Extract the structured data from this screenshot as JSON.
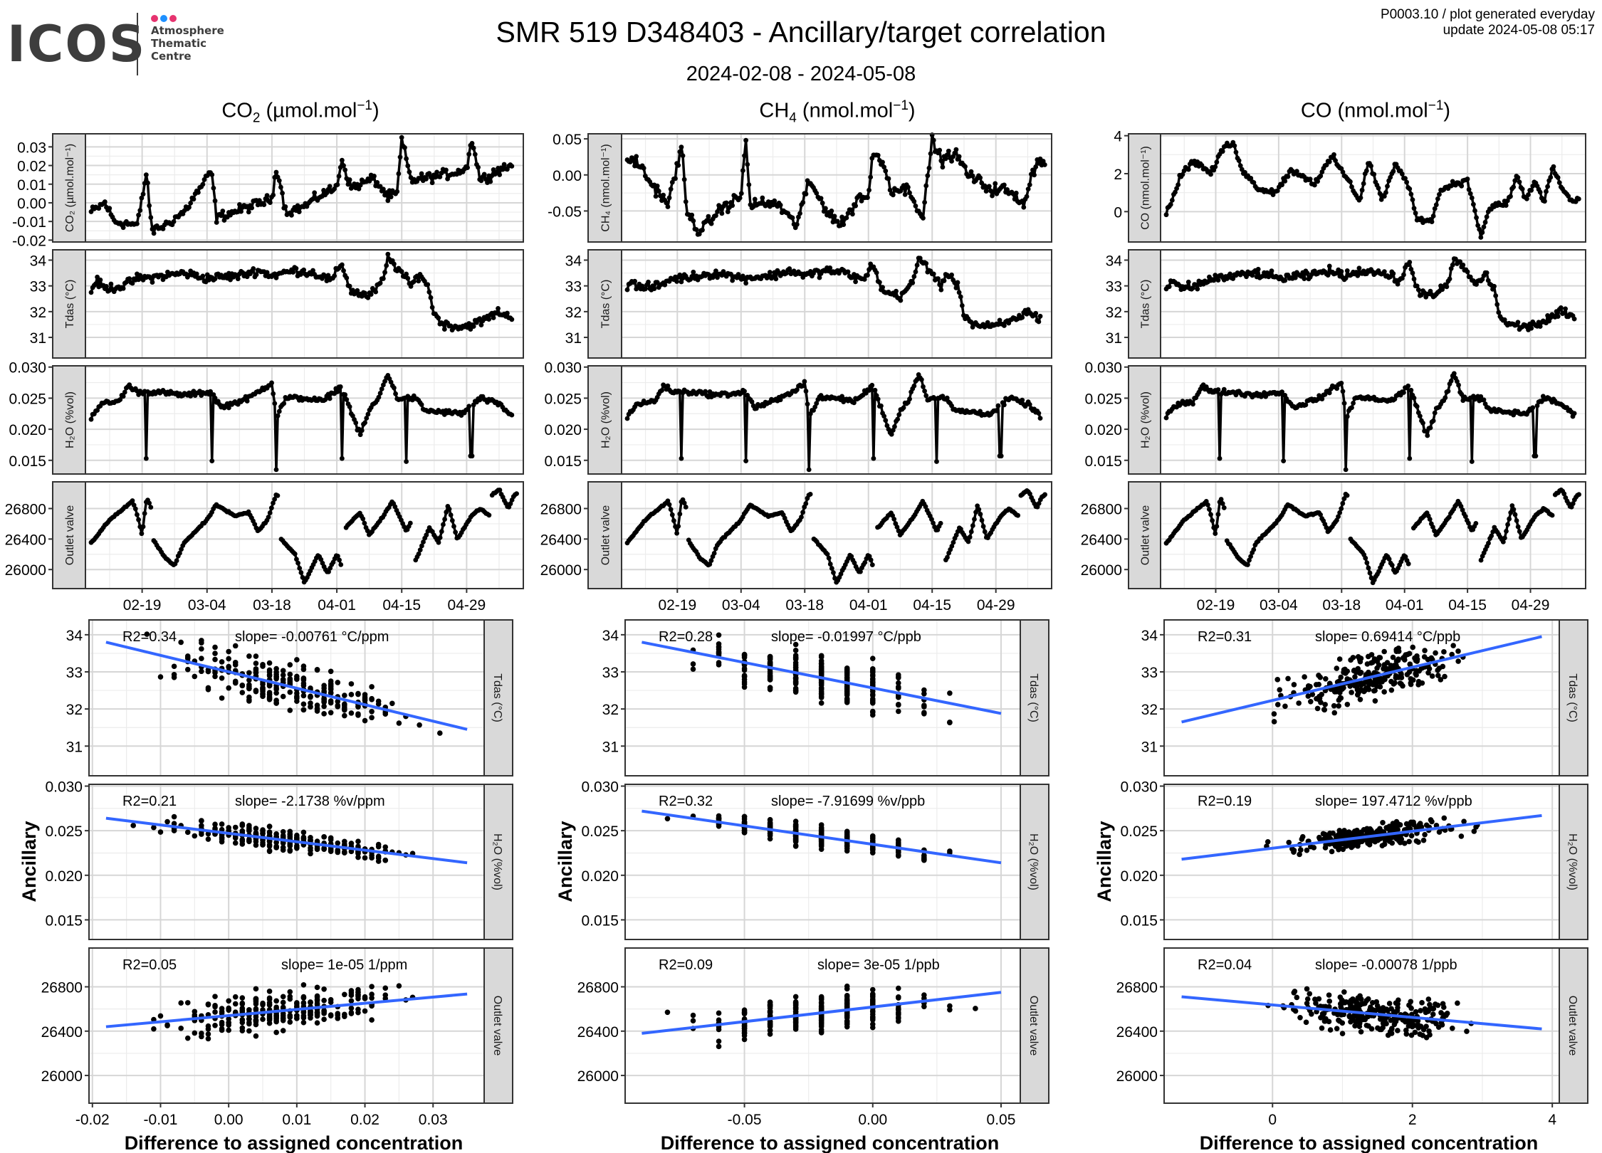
{
  "header": {
    "logo_text": "ICOS",
    "logo_subtitle": [
      "Atmosphere",
      "Thematic",
      "Centre"
    ],
    "logo_dot_colors": [
      "#e6336f",
      "#1e90ff",
      "#e6336f"
    ],
    "title": "SMR 519 D348403 - Ancillary/target correlation",
    "subtitle": "2024-02-08 - 2024-05-08",
    "meta_line1": "P0003.10 / plot generated everyday",
    "meta_line2": "update  2024-05-08 05:17"
  },
  "columns": [
    {
      "name": "CO2",
      "title_main": "CO",
      "title_sub": "2",
      "title_rest": " (µmol.mol",
      "title_sup": "−1",
      "title_end": ")",
      "unit": "ppm"
    },
    {
      "name": "CH4",
      "title_main": "CH",
      "title_sub": "4",
      "title_rest": " (nmol.mol",
      "title_sup": "−1",
      "title_end": ")",
      "unit": "ppb"
    },
    {
      "name": "CO",
      "title_main": "CO",
      "title_sub": "",
      "title_rest": " (nmol.mol",
      "title_sup": "−1",
      "title_end": ")",
      "unit": "ppb"
    }
  ],
  "colors": {
    "line": "#000000",
    "fit": "#3366ff",
    "strip_bg": "#d9d9d9",
    "grid_major": "#d6d6d6",
    "grid_minor": "#ececec",
    "frame": "#333333"
  },
  "chart_data": [
    {
      "type": "line",
      "title": "Time series (2024-02-08 - 2024-05-08)",
      "x_ticks": [
        "02-19",
        "03-04",
        "03-18",
        "04-01",
        "04-15",
        "04-29"
      ],
      "x_range_days": [
        0,
        92
      ],
      "x_tick_days": [
        11,
        25,
        39,
        53,
        67,
        81
      ],
      "panels": [
        {
          "column": "CO2",
          "strip": "CO2 (µmol.mol-1)",
          "ylim": [
            -0.021,
            0.037
          ],
          "yticks": [
            "0.03",
            "0.02",
            "0.01",
            "0.00",
            "-0.01",
            "-0.02"
          ],
          "ytick_values": [
            0.03,
            0.02,
            0.01,
            0.0,
            -0.01,
            -0.02
          ],
          "anchors": [
            [
              0,
              -0.005
            ],
            [
              3,
              0.0
            ],
            [
              5,
              -0.01
            ],
            [
              10,
              -0.012
            ],
            [
              12,
              0.017
            ],
            [
              13,
              -0.015
            ],
            [
              16,
              -0.012
            ],
            [
              20,
              -0.005
            ],
            [
              26,
              0.017
            ],
            [
              27,
              -0.008
            ],
            [
              33,
              -0.003
            ],
            [
              39,
              0.002
            ],
            [
              40,
              0.02
            ],
            [
              42,
              -0.005
            ],
            [
              46,
              -0.002
            ],
            [
              50,
              0.005
            ],
            [
              53,
              0.008
            ],
            [
              54,
              0.024
            ],
            [
              56,
              0.008
            ],
            [
              61,
              0.013
            ],
            [
              64,
              0.003
            ],
            [
              66,
              0.005
            ],
            [
              67,
              0.034
            ],
            [
              69,
              0.012
            ],
            [
              76,
              0.015
            ],
            [
              81,
              0.018
            ],
            [
              82,
              0.035
            ],
            [
              84,
              0.012
            ],
            [
              88,
              0.018
            ],
            [
              91,
              0.02
            ]
          ]
        },
        {
          "column": "all",
          "strip": "Tdas (°C)",
          "ylim": [
            30.2,
            34.4
          ],
          "yticks": [
            "34",
            "33",
            "32",
            "31"
          ],
          "ytick_values": [
            34,
            33,
            32,
            31
          ],
          "anchors": [
            [
              0,
              32.8
            ],
            [
              1,
              33.2
            ],
            [
              3,
              32.9
            ],
            [
              7,
              33.0
            ],
            [
              10,
              33.3
            ],
            [
              12,
              33.3
            ],
            [
              20,
              33.5
            ],
            [
              25,
              33.3
            ],
            [
              32,
              33.4
            ],
            [
              36,
              33.6
            ],
            [
              39,
              33.4
            ],
            [
              44,
              33.6
            ],
            [
              48,
              33.5
            ],
            [
              52,
              33.2
            ],
            [
              54,
              33.9
            ],
            [
              56,
              32.8
            ],
            [
              60,
              32.6
            ],
            [
              63,
              33.2
            ],
            [
              64,
              34.1
            ],
            [
              67,
              33.5
            ],
            [
              69,
              33.0
            ],
            [
              71,
              33.5
            ],
            [
              73,
              32.8
            ],
            [
              74,
              31.9
            ],
            [
              76,
              31.5
            ],
            [
              80,
              31.4
            ],
            [
              84,
              31.6
            ],
            [
              88,
              32.0
            ],
            [
              91,
              31.7
            ]
          ]
        },
        {
          "column": "all",
          "strip": "H2O (%vol)",
          "ylim": [
            0.0128,
            0.0302
          ],
          "yticks": [
            "0.030",
            "0.025",
            "0.020",
            "0.015"
          ],
          "ytick_values": [
            0.03,
            0.025,
            0.02,
            0.015
          ],
          "anchors": [
            [
              0,
              0.022
            ],
            [
              2,
              0.024
            ],
            [
              6,
              0.0245
            ],
            [
              8,
              0.027
            ],
            [
              10,
              0.026
            ],
            [
              12,
              0.026
            ],
            [
              14,
              0.026
            ],
            [
              20,
              0.0255
            ],
            [
              26,
              0.026
            ],
            [
              28,
              0.0235
            ],
            [
              34,
              0.025
            ],
            [
              39,
              0.0275
            ],
            [
              40,
              0.022
            ],
            [
              42,
              0.025
            ],
            [
              46,
              0.025
            ],
            [
              50,
              0.0245
            ],
            [
              54,
              0.027
            ],
            [
              56,
              0.023
            ],
            [
              58,
              0.019
            ],
            [
              60,
              0.023
            ],
            [
              62,
              0.025
            ],
            [
              64,
              0.029
            ],
            [
              66,
              0.025
            ],
            [
              70,
              0.025
            ],
            [
              72,
              0.023
            ],
            [
              80,
              0.0225
            ],
            [
              84,
              0.025
            ],
            [
              88,
              0.024
            ],
            [
              91,
              0.022
            ]
          ],
          "dips": [
            [
              12,
              0.0153
            ],
            [
              26,
              0.0149
            ],
            [
              40,
              0.0135
            ],
            [
              54,
              0.0153
            ],
            [
              68,
              0.0148
            ],
            [
              82,
              0.0157
            ]
          ]
        },
        {
          "column": "all",
          "strip": "Outlet valve",
          "ylim": [
            25750,
            27150
          ],
          "yticks": [
            "26800",
            "26400",
            "26000"
          ],
          "ytick_values": [
            26800,
            26400,
            26000
          ],
          "segments": [
            [
              [
                0,
                26350
              ],
              [
                4,
                26650
              ],
              [
                7,
                26800
              ],
              [
                9,
                26900
              ],
              [
                10,
                26700
              ],
              [
                11,
                26450
              ],
              [
                12,
                26950
              ],
              [
                13,
                26800
              ]
            ],
            [
              [
                13.5,
                26380
              ],
              [
                16,
                26150
              ],
              [
                18,
                26050
              ],
              [
                20,
                26350
              ],
              [
                25,
                26650
              ],
              [
                27,
                26850
              ],
              [
                31,
                26700
              ],
              [
                34,
                26750
              ],
              [
                36,
                26500
              ],
              [
                38,
                26650
              ],
              [
                40,
                27000
              ],
              [
                40.5,
                26950
              ]
            ],
            [
              [
                41,
                26400
              ],
              [
                44,
                26200
              ],
              [
                46,
                25820
              ],
              [
                49,
                26200
              ],
              [
                51,
                25950
              ],
              [
                53,
                26200
              ],
              [
                54,
                26050
              ]
            ],
            [
              [
                55,
                26550
              ],
              [
                58,
                26750
              ],
              [
                60,
                26450
              ],
              [
                63,
                26700
              ],
              [
                65,
                26900
              ],
              [
                68,
                26500
              ],
              [
                69,
                26620
              ]
            ],
            [
              [
                70,
                26120
              ],
              [
                73,
                26550
              ],
              [
                75,
                26350
              ],
              [
                77,
                26850
              ],
              [
                79,
                26400
              ],
              [
                82,
                26700
              ],
              [
                84,
                26800
              ],
              [
                86,
                26700
              ]
            ],
            [
              [
                86.5,
                26980
              ],
              [
                88,
                27050
              ],
              [
                90,
                26800
              ],
              [
                91,
                26950
              ],
              [
                92,
                27000
              ]
            ]
          ]
        }
      ]
    },
    {
      "type": "scatter",
      "title": "Ancillary vs difference to assigned concentration",
      "xlabel": "Difference to assigned concentration",
      "ylabel": "Ancillary",
      "strips": [
        "Tdas (°C)",
        "H2O (%vol)",
        "Outlet valve"
      ],
      "ylims": [
        [
          30.2,
          34.4
        ],
        [
          0.0128,
          0.0302
        ],
        [
          25750,
          27150
        ]
      ],
      "yticks": [
        [
          "34",
          "33",
          "32",
          "31"
        ],
        [
          "0.030",
          "0.025",
          "0.020",
          "0.015"
        ],
        [
          "26800",
          "26400",
          "26000"
        ]
      ],
      "ytick_values": [
        [
          34,
          33,
          32,
          31
        ],
        [
          0.03,
          0.025,
          0.02,
          0.015
        ],
        [
          26800,
          26400,
          26000
        ]
      ],
      "columns": [
        {
          "column": "CO2",
          "xlim": [
            -0.0205,
            0.0375
          ],
          "xticks": [
            "-0.02",
            "-0.01",
            "0.00",
            "0.01",
            "0.02",
            "0.03"
          ],
          "xtick_values": [
            -0.02,
            -0.01,
            0.0,
            0.01,
            0.02,
            0.03
          ],
          "x_discrete_step": 0.001,
          "x_spread": [
            -0.018,
            0.035
          ],
          "fits": [
            {
              "r2": "R2=0.34",
              "slope": "slope= -0.00761 °C/ppm",
              "x0": -0.018,
              "y0": 33.8,
              "x1": 0.035,
              "y1": 31.45
            },
            {
              "r2": "R2=0.21",
              "slope": "slope= -2.1738 %v/ppm",
              "x0": -0.018,
              "y0": 0.0264,
              "x1": 0.035,
              "y1": 0.0214
            },
            {
              "r2": "R2=0.05",
              "slope": "slope= 1e-05 1/ppm",
              "x0": -0.018,
              "y0": 26440,
              "x1": 0.035,
              "y1": 26735
            }
          ]
        },
        {
          "column": "CH4",
          "xlim": [
            -0.0965,
            0.0575
          ],
          "xticks": [
            "-0.05",
            "0.00",
            "0.05"
          ],
          "xtick_values": [
            -0.05,
            0.0,
            0.05
          ],
          "x_discrete_step": 0.01,
          "x_spread": [
            -0.09,
            0.05
          ],
          "fits": [
            {
              "r2": "R2=0.28",
              "slope": "slope= -0.01997 °C/ppb",
              "x0": -0.09,
              "y0": 33.8,
              "x1": 0.05,
              "y1": 31.88
            },
            {
              "r2": "R2=0.32",
              "slope": "slope= -7.91699 %v/ppb",
              "x0": -0.09,
              "y0": 0.0272,
              "x1": 0.05,
              "y1": 0.0214
            },
            {
              "r2": "R2=0.09",
              "slope": "slope= 3e-05 1/ppb",
              "x0": -0.09,
              "y0": 26380,
              "x1": 0.05,
              "y1": 26750
            }
          ]
        },
        {
          "column": "CO",
          "xlim": [
            -1.55,
            4.1
          ],
          "xticks": [
            "0",
            "2",
            "4"
          ],
          "xtick_values": [
            0,
            2,
            4
          ],
          "x_discrete_step": 0,
          "x_spread": [
            -1.3,
            3.85
          ],
          "fits": [
            {
              "r2": "R2=0.31",
              "slope": "slope= 0.69414 °C/ppb",
              "x0": -1.3,
              "y0": 31.65,
              "x1": 3.85,
              "y1": 33.95
            },
            {
              "r2": "R2=0.19",
              "slope": "slope= 197.4712 %v/ppb",
              "x0": -1.3,
              "y0": 0.0218,
              "x1": 3.85,
              "y1": 0.0267
            },
            {
              "r2": "R2=0.04",
              "slope": "slope= -0.00078 1/ppb",
              "x0": -1.3,
              "y0": 26710,
              "x1": 3.85,
              "y1": 26420
            }
          ]
        }
      ]
    }
  ]
}
